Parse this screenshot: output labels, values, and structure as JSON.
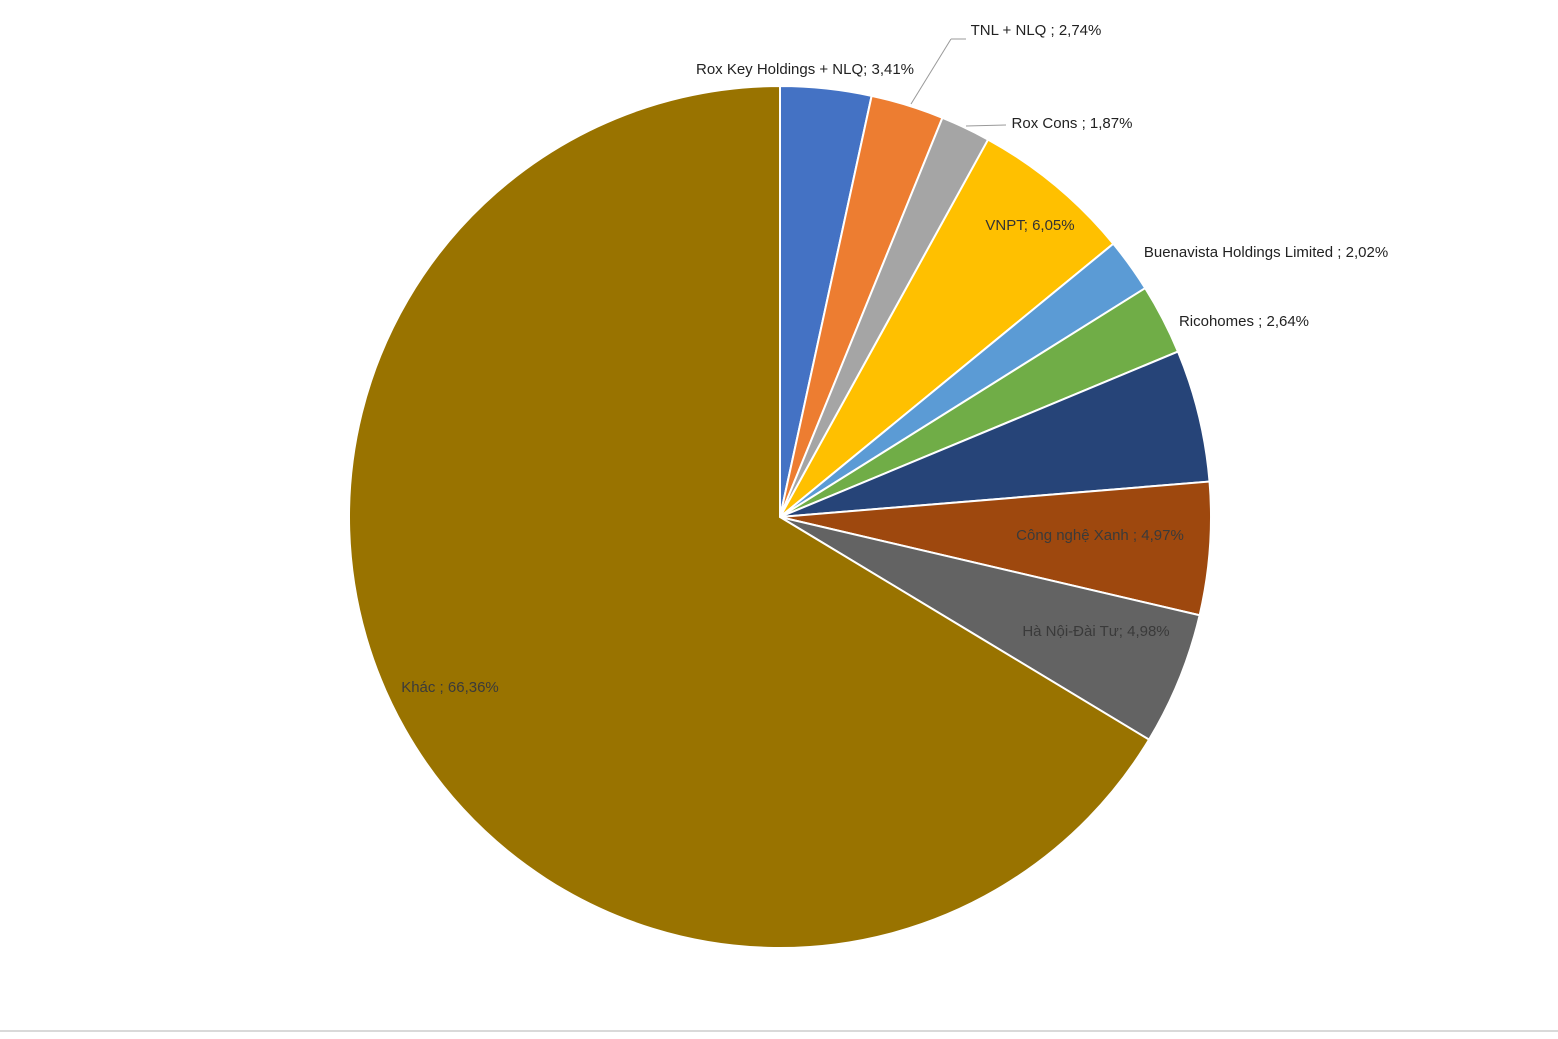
{
  "chart_data": {
    "type": "pie",
    "values": [
      3.41,
      2.74,
      1.87,
      6.05,
      2.02,
      2.64,
      4.96,
      4.97,
      4.98,
      66.36
    ],
    "value_labels": [
      "Rox Key Holdings + NLQ; 3,41%",
      "TNL + NLQ ; 2,74%",
      "Rox Cons ; 1,87%",
      "VNPT; 6,05%",
      "Buenavista Holdings Limited ; 2,02%",
      "Ricohomes ; 2,64%",
      null,
      "Công nghệ Xanh ; 4,97%",
      "Hà Nội-Đài Tư; 4,98%",
      "Khác ; 66,36%"
    ],
    "colors": [
      "#4472c4",
      "#ed7d31",
      "#a5a5a5",
      "#ffc000",
      "#5b9bd5",
      "#70ad47",
      "#264478",
      "#9e480e",
      "#636363",
      "#997300"
    ]
  }
}
